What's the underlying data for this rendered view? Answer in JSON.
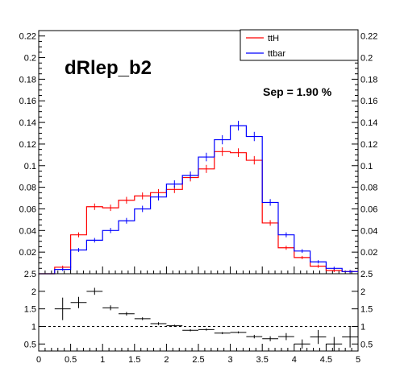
{
  "chart_data": [
    {
      "type": "line",
      "title": "dRlep_b2",
      "annotation": "Sep = 1.90 %",
      "xlim": [
        0,
        5
      ],
      "ylim": [
        0,
        0.225
      ],
      "ytick_labels": [
        "0.02",
        "0.04",
        "0.06",
        "0.08",
        "0.1",
        "0.12",
        "0.14",
        "0.16",
        "0.18",
        "0.2",
        "0.22"
      ],
      "legend_placement": "top-right",
      "bin_edges": [
        0,
        0.25,
        0.5,
        0.75,
        1.0,
        1.25,
        1.5,
        1.75,
        2.0,
        2.25,
        2.5,
        2.75,
        3.0,
        3.25,
        3.5,
        3.75,
        4.0,
        4.25,
        4.5,
        4.75,
        5.0
      ],
      "series": [
        {
          "name": "ttH",
          "color": "#ff0000",
          "values": [
            0.0,
            0.006,
            0.036,
            0.062,
            0.061,
            0.068,
            0.072,
            0.075,
            0.078,
            0.089,
            0.097,
            0.113,
            0.112,
            0.105,
            0.047,
            0.024,
            0.015,
            0.007,
            0.003,
            0.002
          ]
        },
        {
          "name": "ttbar",
          "color": "#0000ff",
          "values": [
            0.0,
            0.004,
            0.022,
            0.031,
            0.04,
            0.049,
            0.06,
            0.071,
            0.083,
            0.091,
            0.108,
            0.124,
            0.137,
            0.127,
            0.066,
            0.036,
            0.021,
            0.011,
            0.005,
            0.002
          ]
        }
      ]
    },
    {
      "type": "scatter",
      "xlim": [
        0,
        5
      ],
      "ylim": [
        0.3,
        2.5
      ],
      "ytick_labels": [
        "0.5",
        "1",
        "1.5",
        "2",
        "2.5"
      ],
      "xtick_labels": [
        "0",
        "0.5",
        "1",
        "1.5",
        "2",
        "2.5",
        "3",
        "3.5",
        "4",
        "4.5",
        "5"
      ],
      "reference_line": 1,
      "points": [
        {
          "x": 0.375,
          "y": 1.5,
          "err": 0.32
        },
        {
          "x": 0.625,
          "y": 1.68,
          "err": 0.16
        },
        {
          "x": 0.875,
          "y": 2.0,
          "err": 0.1
        },
        {
          "x": 1.125,
          "y": 1.53,
          "err": 0.07
        },
        {
          "x": 1.375,
          "y": 1.36,
          "err": 0.05
        },
        {
          "x": 1.625,
          "y": 1.22,
          "err": 0.04
        },
        {
          "x": 1.875,
          "y": 1.08,
          "err": 0.04
        },
        {
          "x": 2.125,
          "y": 1.02,
          "err": 0.03
        },
        {
          "x": 2.375,
          "y": 0.89,
          "err": 0.03
        },
        {
          "x": 2.625,
          "y": 0.91,
          "err": 0.03
        },
        {
          "x": 2.875,
          "y": 0.81,
          "err": 0.03
        },
        {
          "x": 3.125,
          "y": 0.83,
          "err": 0.03
        },
        {
          "x": 3.375,
          "y": 0.71,
          "err": 0.05
        },
        {
          "x": 3.625,
          "y": 0.65,
          "err": 0.07
        },
        {
          "x": 3.875,
          "y": 0.71,
          "err": 0.1
        },
        {
          "x": 4.125,
          "y": 0.5,
          "err": 0.13
        },
        {
          "x": 4.375,
          "y": 0.7,
          "err": 0.2
        },
        {
          "x": 4.625,
          "y": 0.5,
          "err": 0.2
        },
        {
          "x": 4.875,
          "y": 0.7,
          "err": 0.3
        }
      ]
    }
  ]
}
